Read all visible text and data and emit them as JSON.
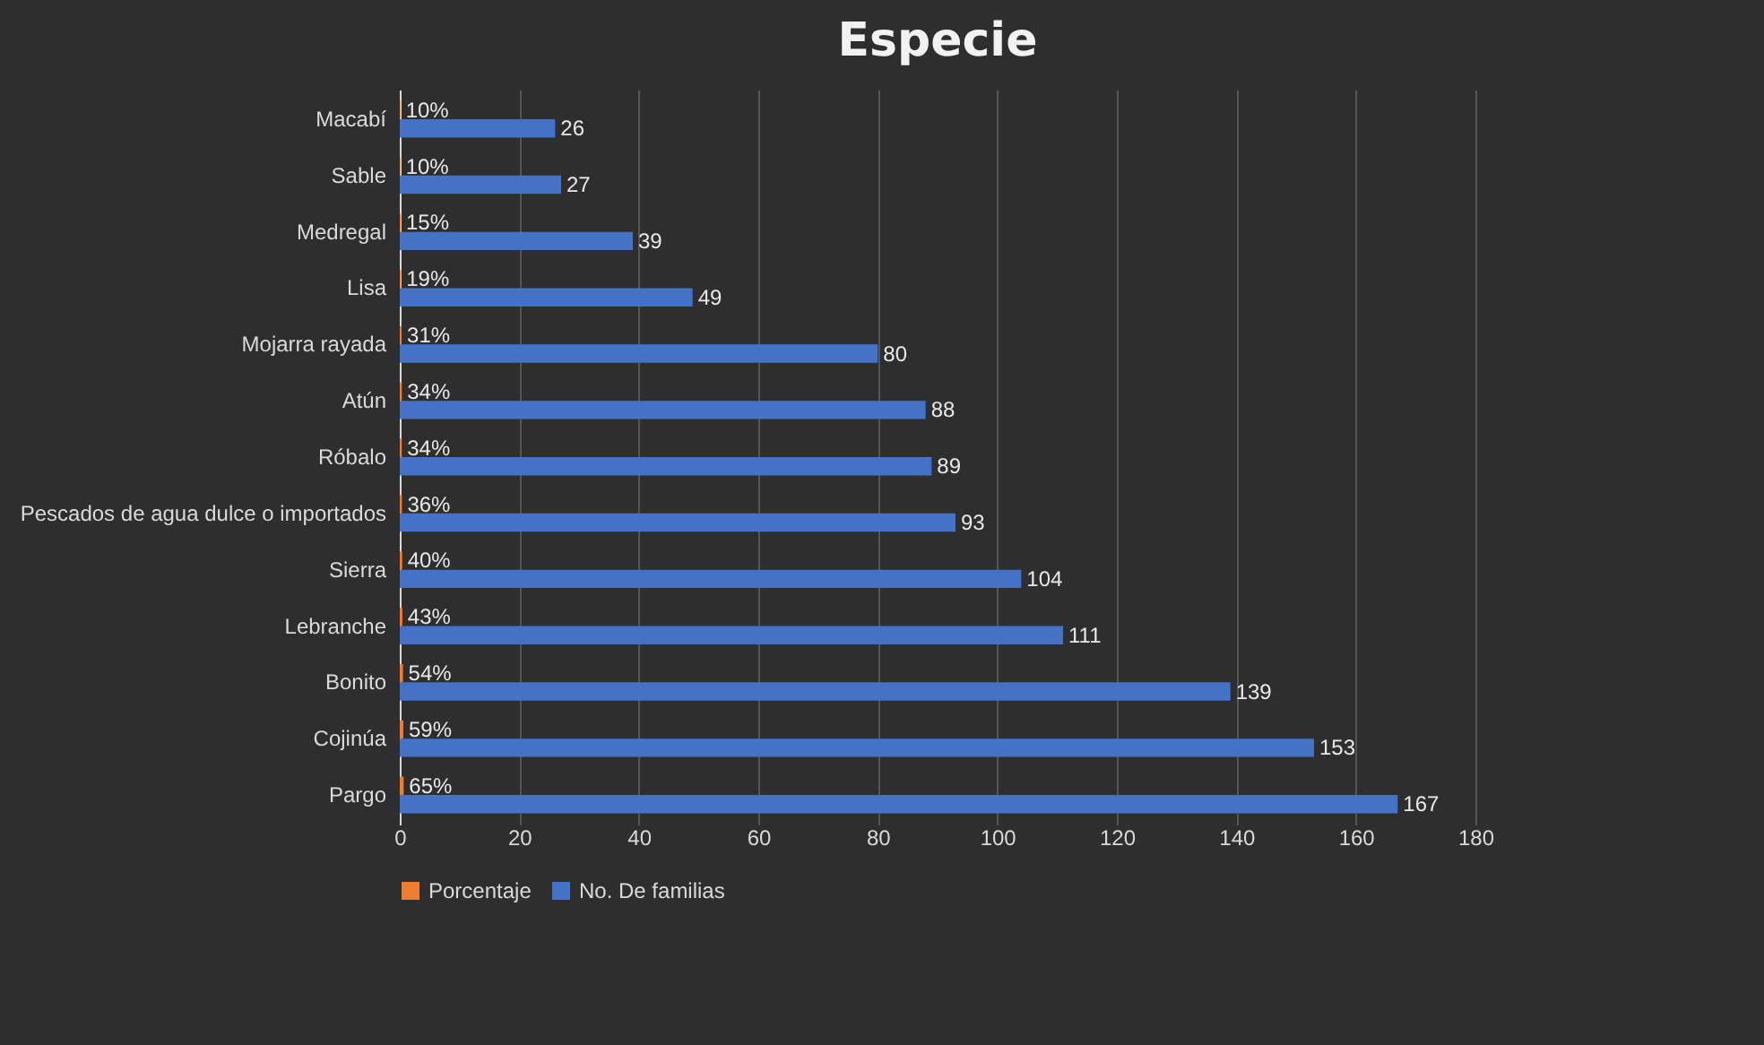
{
  "chart_data": {
    "type": "bar",
    "orientation": "horizontal",
    "title": "Especie",
    "categories": [
      "Macabí",
      "Sable",
      "Medregal",
      "Lisa",
      "Mojarra rayada",
      "Atún",
      "Róbalo",
      "Pescados de agua dulce o importados",
      "Sierra",
      "Lebranche",
      "Bonito",
      "Cojinúa",
      "Pargo"
    ],
    "series": [
      {
        "name": "Porcentaje",
        "color": "#ed7d31",
        "values": [
          0.1,
          0.1,
          0.15,
          0.19,
          0.31,
          0.34,
          0.34,
          0.36,
          0.4,
          0.43,
          0.54,
          0.59,
          0.65
        ],
        "value_labels": [
          "10%",
          "10%",
          "15%",
          "19%",
          "31%",
          "34%",
          "34%",
          "36%",
          "40%",
          "43%",
          "54%",
          "59%",
          "65%"
        ]
      },
      {
        "name": "No. De familias",
        "color": "#4472c4",
        "values": [
          26,
          27,
          39,
          49,
          80,
          88,
          89,
          93,
          104,
          111,
          139,
          153,
          167
        ],
        "value_labels": [
          "26",
          "27",
          "39",
          "49",
          "80",
          "88",
          "89",
          "93",
          "104",
          "111",
          "139",
          "153",
          "167"
        ]
      }
    ],
    "xlim": [
      0,
      180
    ],
    "xticks": [
      0,
      20,
      40,
      60,
      80,
      100,
      120,
      140,
      160,
      180
    ],
    "grid": "x",
    "legend": "bottom"
  }
}
